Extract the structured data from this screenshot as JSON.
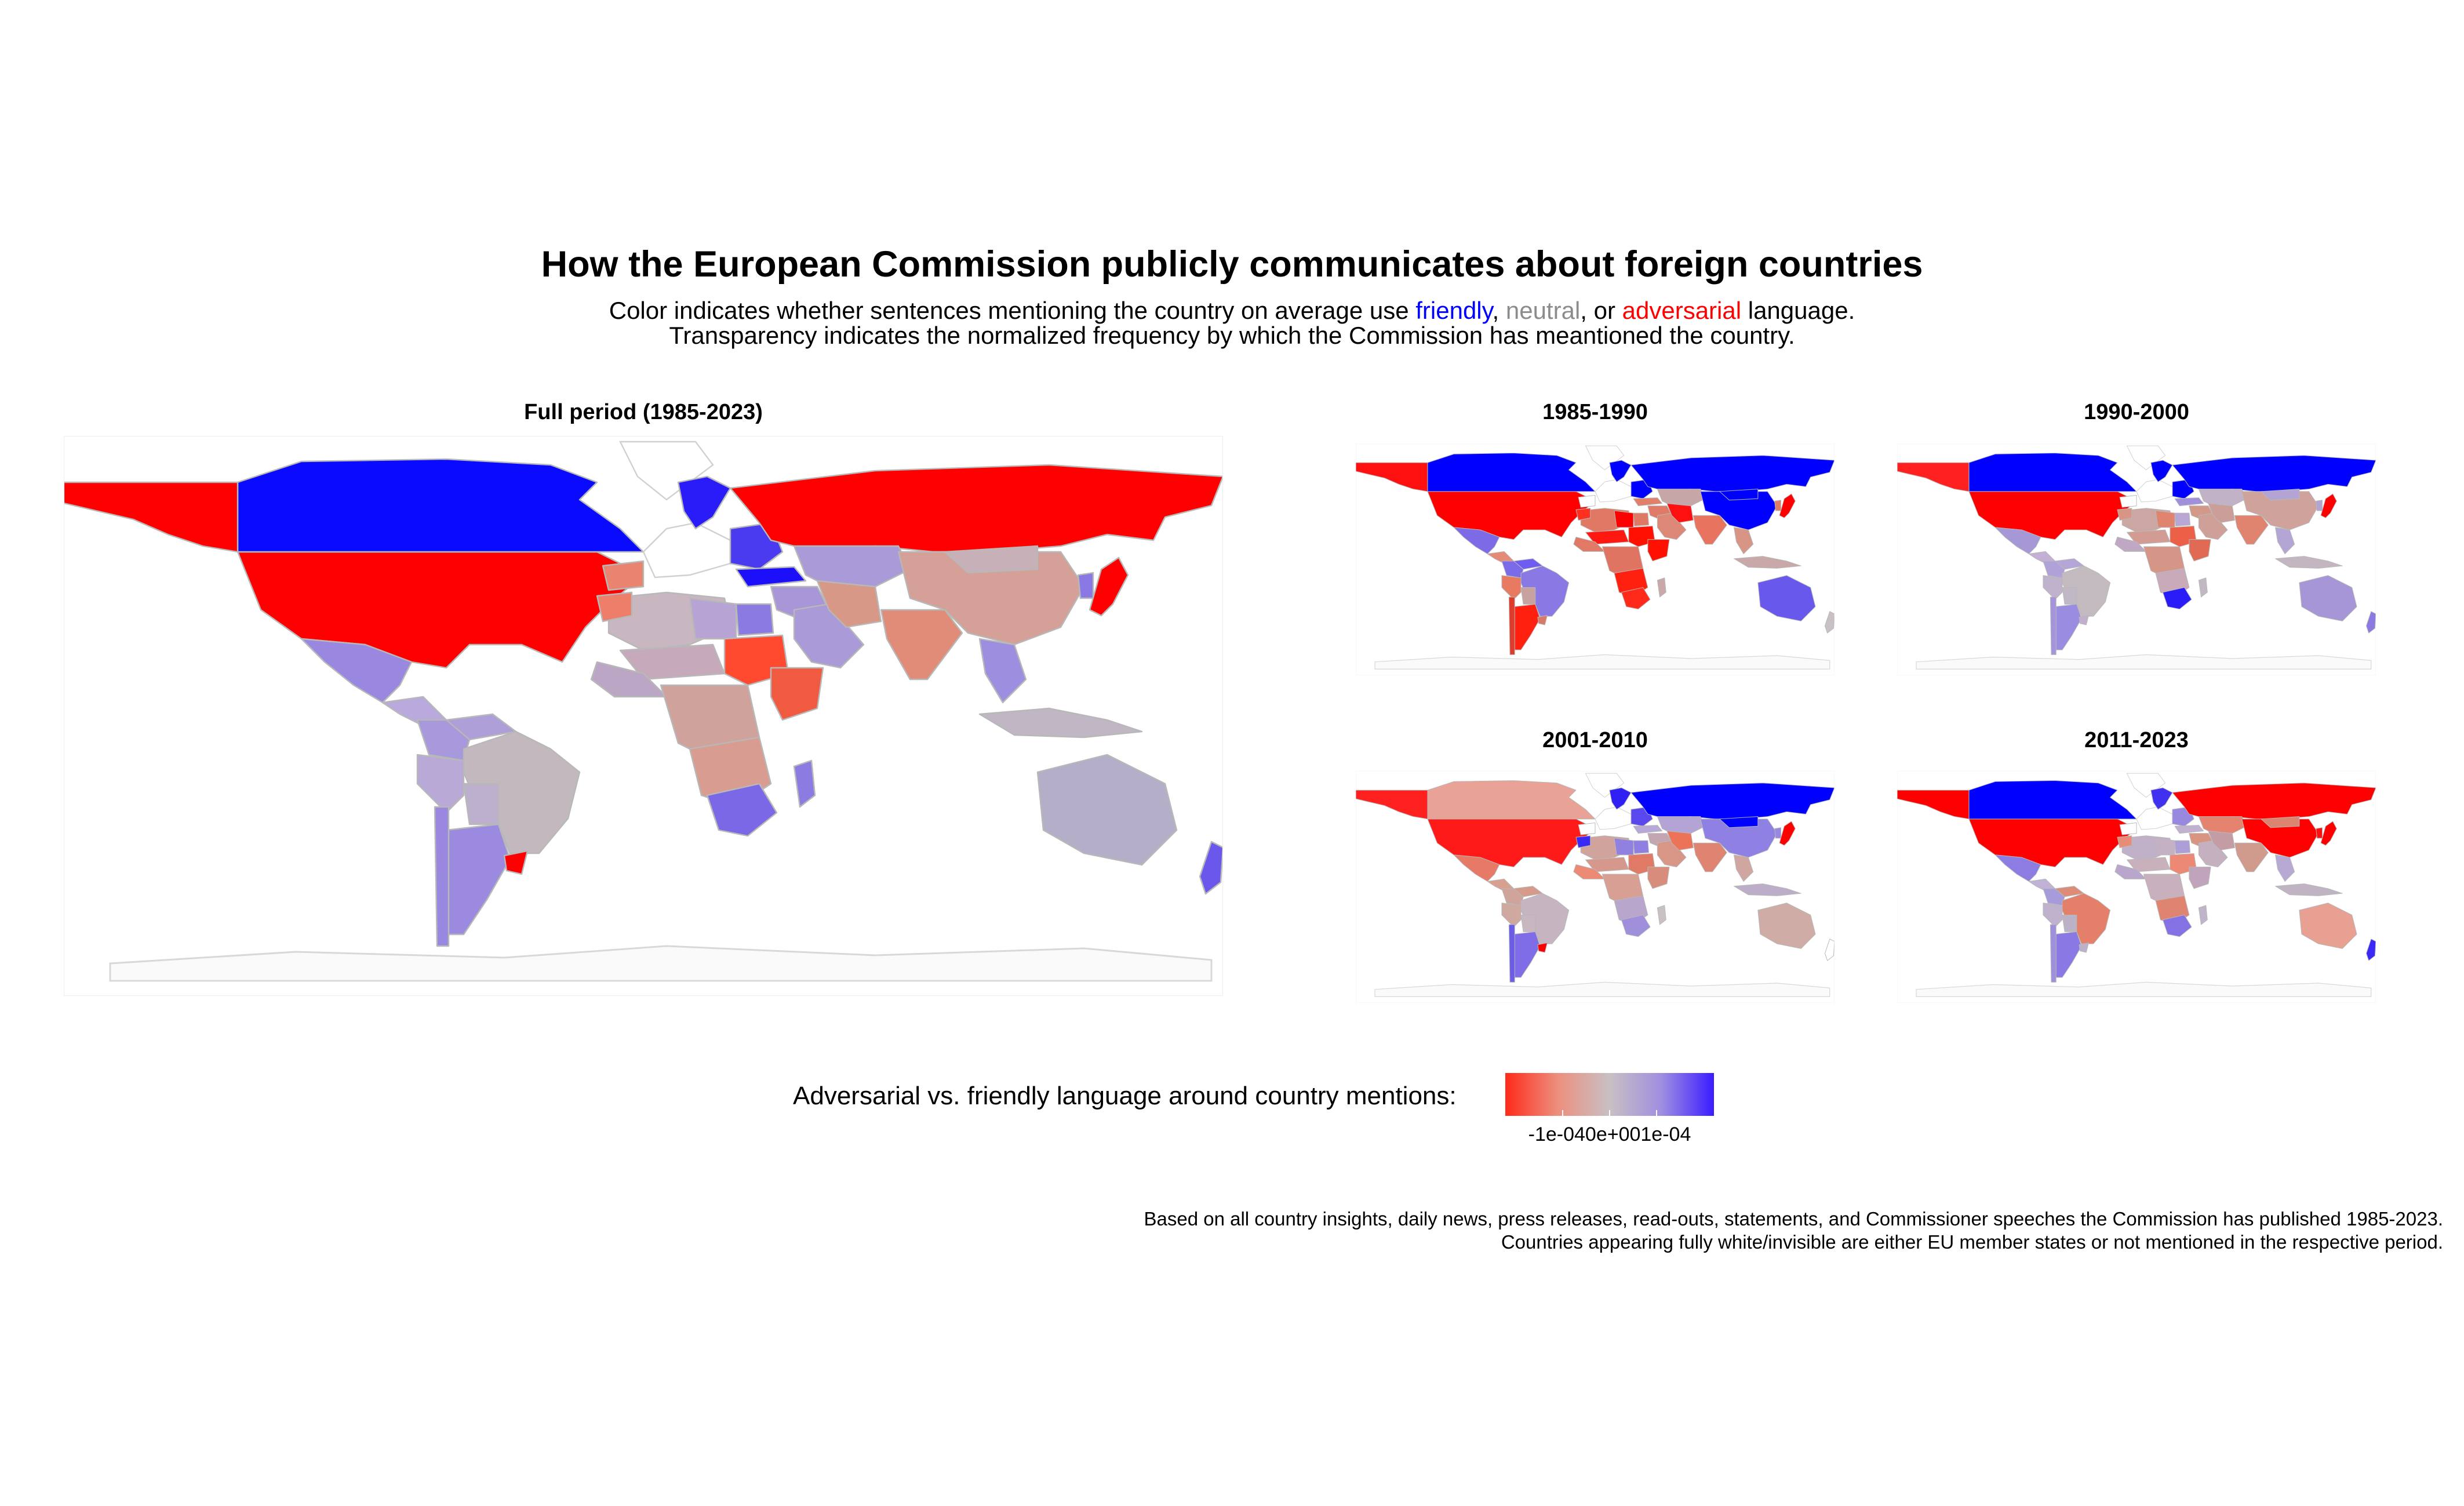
{
  "title": "How the European Commission publicly communicates about foreign countries",
  "subtitle": {
    "prefix": "Color indicates whether sentences mentioning the country on average use ",
    "friendly": "friendly",
    "sep1": ", ",
    "neutral": "neutral",
    "sep2": ", or ",
    "adversarial": "adversarial",
    "suffix": " language.",
    "line2": "Transparency indicates the normalized frequency by which the Commission has meantioned the country."
  },
  "panels": [
    {
      "title": "Full period (1985-2023)"
    },
    {
      "title": "1985-1990"
    },
    {
      "title": "1990-2000"
    },
    {
      "title": "2001-2010"
    },
    {
      "title": "2011-2023"
    }
  ],
  "legend": {
    "label": "Adversarial vs. friendly language around country mentions:",
    "ticks": "-1e-040e+001e-04",
    "colors": {
      "adversarial": "#ff0000",
      "neutral": "#bdb5b8",
      "friendly": "#0000ff"
    }
  },
  "caption": {
    "line1": "Based on all country insights, daily news, press releases, read-outs, statements, and Commissioner speeches the Commission has published 1985-2023.",
    "line2": "Countries appearing fully white/invisible are either EU member states or not mentioned in the respective period."
  },
  "colors": {
    "friendly": "#0000ff",
    "neutral": "#8c8c8c",
    "adversarial": "#ff0000"
  },
  "map_regions": [
    {
      "name": "USA",
      "colors": [
        "#ff0000",
        "#ff0000",
        "#ff0000",
        "#ff1a1a",
        "#ff0000"
      ]
    },
    {
      "name": "Canada",
      "colors": [
        "#0a0aff",
        "#0000ff",
        "#0000ff",
        "#e8a296",
        "#0000ff"
      ]
    },
    {
      "name": "Alaska",
      "colors": [
        "#ff0000",
        "#ff1010",
        "#ff2020",
        "#ff2020",
        "#ff0000"
      ]
    },
    {
      "name": "Greenland",
      "colors": [
        "#ffffff",
        "#ffffff",
        "#ffffff",
        "#ffffff",
        "#ffffff"
      ]
    },
    {
      "name": "Mexico",
      "colors": [
        "#9a87e0",
        "#7c6ae6",
        "#a697d6",
        "#e77a66",
        "#8d7ce2"
      ]
    },
    {
      "name": "Central America",
      "colors": [
        "#b9a9dc",
        "#e68a78",
        "#c4b0d4",
        "#d8a090",
        "#c0b2d4"
      ]
    },
    {
      "name": "Venezuela",
      "colors": [
        "#ae9fd8",
        "#6f5cf0",
        "#b6a6d8",
        "#d69a8a",
        "#dd8c78"
      ]
    },
    {
      "name": "Colombia",
      "colors": [
        "#a899dc",
        "#7c6be8",
        "#b0a2d8",
        "#cfa49a",
        "#a79bdc"
      ]
    },
    {
      "name": "Brazil",
      "colors": [
        "#c2b8be",
        "#8a78e4",
        "#c3bbc0",
        "#c6b4c0",
        "#e4806a"
      ]
    },
    {
      "name": "Peru",
      "colors": [
        "#b8a9d6",
        "#e87a62",
        "#c0b2cc",
        "#cfa8a0",
        "#c0b2cc"
      ]
    },
    {
      "name": "Bolivia",
      "colors": [
        "#bcb0cc",
        "#c8a2a0",
        "#c0b8c4",
        "#c8b6c0",
        "#bcb2c8"
      ]
    },
    {
      "name": "Argentina",
      "colors": [
        "#9c8ae0",
        "#ff2010",
        "#9a8ce0",
        "#7e6de6",
        "#8a78e4"
      ]
    },
    {
      "name": "Chile",
      "colors": [
        "#9a88e0",
        "#e03a2a",
        "#a594dc",
        "#6d5ce8",
        "#a090dc"
      ]
    },
    {
      "name": "Uruguay",
      "colors": [
        "#ff0000",
        "#d87a6a",
        "#c0b0cc",
        "#ff0000",
        "#bcb0cc"
      ]
    },
    {
      "name": "Iberia",
      "colors": [
        "#e8846f",
        "#ffffff",
        "#ffffff",
        "#ffffff",
        "#ffffff"
      ]
    },
    {
      "name": "Western Europe",
      "colors": [
        "#ffffff",
        "#ffffff",
        "#ffffff",
        "#ffffff",
        "#ffffff"
      ]
    },
    {
      "name": "Norway",
      "colors": [
        "#2a1cf8",
        "#0000ff",
        "#0000ff",
        "#3020f4",
        "#4030f0"
      ]
    },
    {
      "name": "Eastern Europe",
      "colors": [
        "#4a3af0",
        "#0000ff",
        "#0000ff",
        "#5a48ee",
        "#9888e0"
      ]
    },
    {
      "name": "Turkey",
      "colors": [
        "#1c10fa",
        "#e0806a",
        "#a090dc",
        "#b8a8d8",
        "#c0b2d0"
      ]
    },
    {
      "name": "Russia",
      "colors": [
        "#ff0000",
        "#0000ff",
        "#0000ff",
        "#0000ff",
        "#ff0000"
      ]
    },
    {
      "name": "Central Asia",
      "colors": [
        "#aa9ad8",
        "#c6a6a6",
        "#c2b2c8",
        "#b4a4d6",
        "#e48470"
      ]
    },
    {
      "name": "Middle East",
      "colors": [
        "#a896d8",
        "#e07a66",
        "#d49888",
        "#c4a6b0",
        "#d99482"
      ]
    },
    {
      "name": "Arabia",
      "colors": [
        "#aa9bd8",
        "#dd8876",
        "#cfa098",
        "#d89686",
        "#c5b0c0"
      ]
    },
    {
      "name": "Iran",
      "colors": [
        "#d89888",
        "#ff1010",
        "#cc9e9a",
        "#ec7258",
        "#c49ca4"
      ]
    },
    {
      "name": "India",
      "colors": [
        "#e08c78",
        "#e8735e",
        "#e08470",
        "#e08472",
        "#d09a8c"
      ]
    },
    {
      "name": "China",
      "colors": [
        "#d4a097",
        "#0000ff",
        "#cfa39c",
        "#8f80e4",
        "#ff0000"
      ]
    },
    {
      "name": "Mongolia",
      "colors": [
        "#c8b0b8",
        "#0000ff",
        "#b4a4d4",
        "#0000ff",
        "#dd8470"
      ]
    },
    {
      "name": "Korea",
      "colors": [
        "#8a78e4",
        "#e07c68",
        "#b4a4d4",
        "#9a88e0",
        "#ff1010"
      ]
    },
    {
      "name": "Japan",
      "colors": [
        "#ff0000",
        "#ff0000",
        "#ff0000",
        "#ff0000",
        "#ff0000"
      ]
    },
    {
      "name": "Southeast Asia",
      "colors": [
        "#9e8ee0",
        "#d89484",
        "#b4a6d4",
        "#cfa6a0",
        "#b8a8d4"
      ]
    },
    {
      "name": "Indonesia",
      "colors": [
        "#c0b6c4",
        "#c8a8a8",
        "#c4b6c0",
        "#bcaec8",
        "#c0b4c4"
      ]
    },
    {
      "name": "Australia",
      "colors": [
        "#b5aec8",
        "#6858ec",
        "#a696d8",
        "#d0aca6",
        "#e8a092"
      ]
    },
    {
      "name": "New Zealand",
      "colors": [
        "#6a58ec",
        "#c8c0c4",
        "#8c7ae2",
        "#ffffff",
        "#3a28f6"
      ]
    },
    {
      "name": "North Africa",
      "colors": [
        "#c8b6c0",
        "#e07864",
        "#cca6a2",
        "#d0a49c",
        "#c0b0c8"
      ]
    },
    {
      "name": "Morocco",
      "colors": [
        "#ec7e6a",
        "#ff3020",
        "#d89484",
        "#3a28f4",
        "#e88c78"
      ]
    },
    {
      "name": "Libya",
      "colors": [
        "#b8a4d4",
        "#ff0000",
        "#e08470",
        "#9080e0",
        "#c4b2c4"
      ]
    },
    {
      "name": "Egypt",
      "colors": [
        "#8a7ae2",
        "#e07866",
        "#b8a6d4",
        "#8f7fe2",
        "#ae9ed8"
      ]
    },
    {
      "name": "Sahel",
      "colors": [
        "#c6aabc",
        "#ff1810",
        "#d29c94",
        "#d6988c",
        "#c8b0bc"
      ]
    },
    {
      "name": "West Africa",
      "colors": [
        "#bca6c6",
        "#e07a66",
        "#c0a8c4",
        "#ec8a76",
        "#b8a6cc"
      ]
    },
    {
      "name": "Sudan",
      "colors": [
        "#ff4a30",
        "#ff1000",
        "#ec6048",
        "#e07a64",
        "#ec8874"
      ]
    },
    {
      "name": "Horn of Africa",
      "colors": [
        "#f05a40",
        "#ff1000",
        "#e06a54",
        "#d88c7c",
        "#c0a4bc"
      ]
    },
    {
      "name": "Central Africa",
      "colors": [
        "#cfa39c",
        "#e07462",
        "#d59688",
        "#d8a094",
        "#c8b0bc"
      ]
    },
    {
      "name": "Southern Africa",
      "colors": [
        "#d89c90",
        "#ff2010",
        "#c8aab8",
        "#b8a6cc",
        "#e08472"
      ]
    },
    {
      "name": "South Africa",
      "colors": [
        "#7a68e6",
        "#ff2a1a",
        "#2a1cf8",
        "#a090dc",
        "#8472e4"
      ]
    },
    {
      "name": "Madagascar",
      "colors": [
        "#8c7ce2",
        "#c8a8a8",
        "#c2b8c4",
        "#c8c0c4",
        "#c0b4c8"
      ]
    },
    {
      "name": "Antarctica",
      "colors": [
        "#fafafa",
        "#fafafa",
        "#fafafa",
        "#fafafa",
        "#fafafa"
      ]
    }
  ]
}
